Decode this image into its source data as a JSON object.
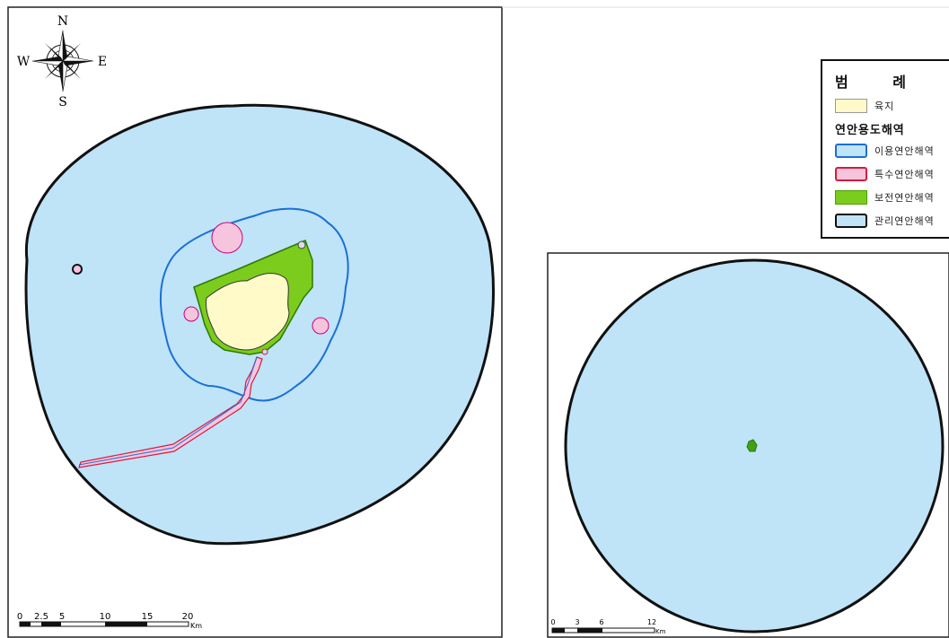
{
  "main_map": {
    "compass": {
      "n": "N",
      "s": "S",
      "e": "E",
      "w": "W"
    },
    "scale_bar": {
      "ticks": [
        "0",
        "2.5",
        "5",
        "10",
        "15",
        "20"
      ],
      "unit": "Km"
    }
  },
  "inset_map": {
    "scale_bar": {
      "ticks": [
        "0",
        "3",
        "6",
        "12"
      ],
      "unit": "Km"
    }
  },
  "legend": {
    "title": "범 례",
    "land_label": "육지",
    "group_title": "연안용도해역",
    "items": [
      {
        "label": "이용연안해역",
        "fill": "#bfe3f7",
        "border": "#1b6fd6"
      },
      {
        "label": "특수연안해역",
        "fill": "#f7c4de",
        "border": "#d81b3c"
      },
      {
        "label": "보전연안해역",
        "fill": "#7ccc1e",
        "border": "#4aa000"
      },
      {
        "label": "관리연안해역",
        "fill": "#bfe3f7",
        "border": "#111111"
      }
    ],
    "land_color": "#fffac8"
  },
  "colors": {
    "sea_blue": "#bfe3f7",
    "use_zone_border": "#1b6fd6",
    "special_pink": "#f7c4de",
    "special_border": "#d81b3c",
    "conservation_green": "#7ccc1e",
    "land_yellow": "#fffac8",
    "management_border": "#111111"
  }
}
